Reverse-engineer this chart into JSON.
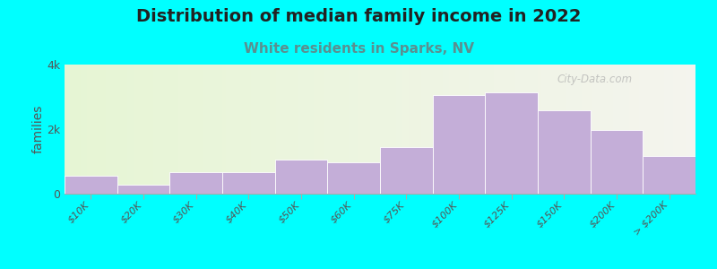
{
  "title": "Distribution of median family income in 2022",
  "subtitle": "White residents in Sparks, NV",
  "ylabel": "families",
  "background_color": "#00FFFF",
  "bar_color": "#c4aed8",
  "bar_edge_color": "#ffffff",
  "categories": [
    "$10K",
    "$20K",
    "$30K",
    "$40K",
    "$50K",
    "$60K",
    "$75K",
    "$100K",
    "$125K",
    "$150K",
    "$200K",
    "> $200K"
  ],
  "values": [
    550,
    290,
    680,
    680,
    1050,
    980,
    1450,
    3050,
    3150,
    2580,
    1980,
    1180
  ],
  "bar_widths": [
    1,
    1,
    1,
    1,
    1,
    1,
    1,
    1,
    1,
    1,
    1,
    1
  ],
  "bar_positions": [
    0,
    1,
    2,
    3,
    4,
    5,
    6,
    8,
    10,
    12,
    15,
    19
  ],
  "ylim": [
    0,
    4000
  ],
  "ytick_labels": [
    "0",
    "2k",
    "4k"
  ],
  "ytick_values": [
    0,
    2000,
    4000
  ],
  "title_fontsize": 14,
  "subtitle_fontsize": 11,
  "subtitle_color": "#5a9090",
  "ylabel_fontsize": 10,
  "watermark": "City-Data.com"
}
